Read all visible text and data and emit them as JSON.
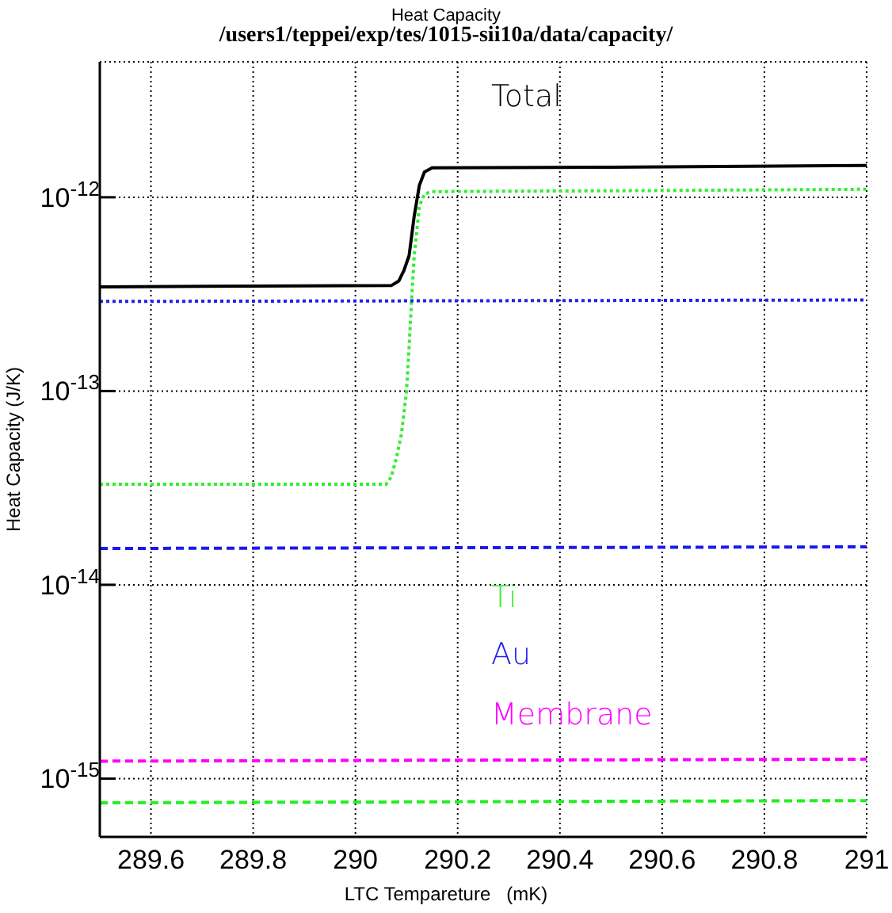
{
  "chart_data": {
    "type": "line",
    "title": "Heat Capacity",
    "subtitle": "/users1/teppei/exp/tes/1015-sii10a/data/capacity/",
    "xlabel": "LTC Tempareture   (mK)",
    "ylabel": "Heat Capacity   (J/K)",
    "log": "y",
    "grid": true,
    "marker": "none",
    "xlim": [
      289.5,
      291
    ],
    "xticks": [
      289.6,
      289.8,
      290,
      290.2,
      290.4,
      290.6,
      290.8,
      291
    ],
    "ylim": [
      5e-16,
      5e-12
    ],
    "yticks": [
      {
        "value": 1e-15,
        "label": "10$^{-15}$"
      },
      {
        "value": 1e-14,
        "label": "10$^{-14}$"
      },
      {
        "value": 1e-13,
        "label": "10$^{-13}$"
      },
      {
        "value": 1e-12,
        "label": "10$^{-12}$"
      }
    ],
    "series": [
      {
        "name": "Total",
        "color": "#000000",
        "line_style": "solid",
        "x": [
          289.5,
          290.07,
          290.085,
          290.095,
          290.105,
          290.115,
          290.125,
          290.135,
          290.15,
          290.5,
          291
        ],
        "values": [
          3.45e-13,
          3.5e-13,
          3.7e-13,
          4.2e-13,
          5e-13,
          8e-13,
          1.15e-12,
          1.35e-12,
          1.42e-12,
          1.43e-12,
          1.46e-12
        ]
      },
      {
        "name": "Ti",
        "color": "#33ee33",
        "line_style": "dotted",
        "x": [
          289.5,
          290.06,
          290.07,
          290.08,
          290.09,
          290.1,
          290.105,
          290.11,
          290.115,
          290.125,
          290.135,
          290.15,
          290.5,
          291
        ],
        "values": [
          3.3e-14,
          3.3e-14,
          3.6e-14,
          4.5e-14,
          6e-14,
          1e-13,
          1.7e-13,
          3e-13,
          5e-13,
          9e-13,
          1.04e-12,
          1.07e-12,
          1.08e-12,
          1.1e-12
        ]
      },
      {
        "name": "Au",
        "color": "#2222ee",
        "line_style": "dotted",
        "x": [
          289.5,
          291
        ],
        "values": [
          2.9e-13,
          2.95e-13
        ]
      },
      {
        "color": "#1a1aee",
        "line_style": "dashed",
        "x": [
          289.5,
          291
        ],
        "values": [
          1.54e-14,
          1.57e-14
        ]
      },
      {
        "name": "Membrane",
        "color": "#ff00ff",
        "line_style": "dashed",
        "x": [
          289.5,
          291
        ],
        "values": [
          1.23e-15,
          1.26e-15
        ]
      },
      {
        "color": "#22ee22",
        "line_style": "dashed",
        "x": [
          289.5,
          291
        ],
        "values": [
          7.5e-16,
          7.7e-16
        ]
      }
    ]
  }
}
